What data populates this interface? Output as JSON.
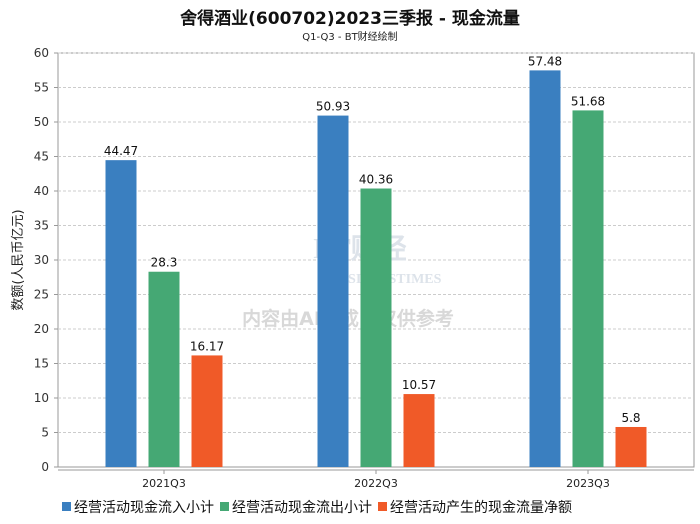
{
  "chart_data": {
    "type": "bar",
    "title": "舍得酒业(600702)2023三季报 - 现金流量",
    "subtitle": "Q1-Q3 - BT财经绘制",
    "xlabel": "",
    "ylabel": "数额(人民币亿元)",
    "ylim": [
      0,
      60
    ],
    "yticks": [
      0,
      5,
      10,
      15,
      20,
      25,
      30,
      35,
      40,
      45,
      50,
      55,
      60
    ],
    "grid": true,
    "legend_position": "bottom",
    "categories": [
      "2021Q3",
      "2022Q3",
      "2023Q3"
    ],
    "series": [
      {
        "name": "经营活动现金流入小计",
        "color": "#3a7fc0",
        "values": [
          44.47,
          50.93,
          57.48
        ]
      },
      {
        "name": "经营活动现金流出小计",
        "color": "#45a874",
        "values": [
          28.3,
          40.36,
          51.68
        ]
      },
      {
        "name": "经营活动产生的现金流量净额",
        "color": "#f05a28",
        "values": [
          16.17,
          10.57,
          5.8
        ]
      }
    ]
  },
  "watermark": {
    "brand": "BT财经",
    "brand_en": "BUSINESSTIMES",
    "notice": "内容由AI生成，仅供参考"
  }
}
